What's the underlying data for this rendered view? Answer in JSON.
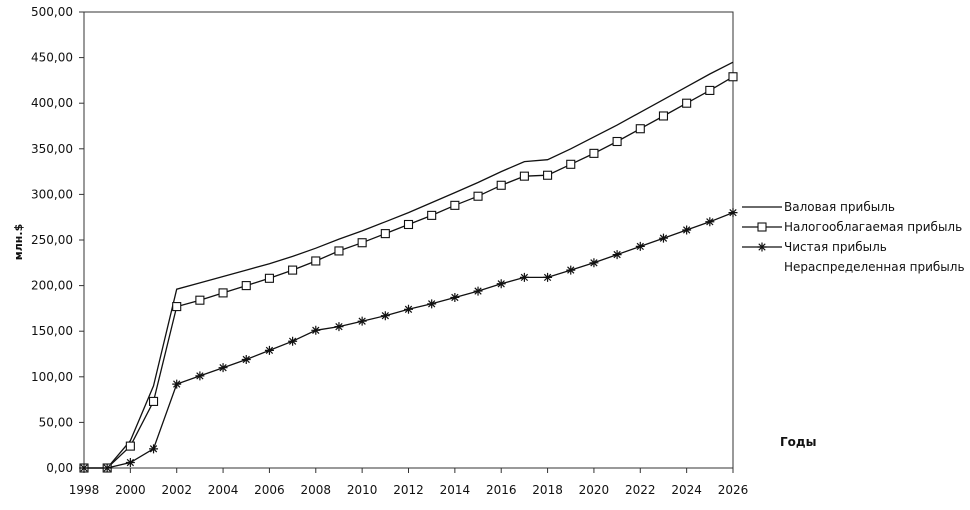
{
  "chart_data": {
    "type": "line",
    "ylabel": "млн.$",
    "xlabel": "Годы",
    "ylim": [
      0,
      500
    ],
    "xlim": [
      1998,
      2026
    ],
    "y_ticks": [
      "0,00",
      "50,00",
      "100,00",
      "150,00",
      "200,00",
      "250,00",
      "300,00",
      "350,00",
      "400,00",
      "450,00",
      "500,00"
    ],
    "x_ticks": [
      "1998",
      "2000",
      "2002",
      "2004",
      "2006",
      "2008",
      "2010",
      "2012",
      "2014",
      "2016",
      "2018",
      "2020",
      "2022",
      "2024",
      "2026"
    ],
    "legend_placement": "right",
    "grid": false,
    "series": [
      {
        "name": "Валовая прибыль",
        "marker": "none",
        "style": "solid",
        "points": [
          [
            1998,
            0
          ],
          [
            1999,
            0
          ],
          [
            2000,
            30
          ],
          [
            2001,
            90
          ],
          [
            2002,
            196
          ],
          [
            2003,
            203
          ],
          [
            2004,
            210
          ],
          [
            2005,
            217
          ],
          [
            2006,
            224
          ],
          [
            2007,
            232
          ],
          [
            2008,
            241
          ],
          [
            2009,
            251
          ],
          [
            2010,
            260
          ],
          [
            2011,
            270
          ],
          [
            2012,
            280
          ],
          [
            2013,
            291
          ],
          [
            2014,
            302
          ],
          [
            2015,
            313
          ],
          [
            2016,
            325
          ],
          [
            2017,
            336
          ],
          [
            2018,
            338
          ],
          [
            2019,
            350
          ],
          [
            2020,
            363
          ],
          [
            2021,
            376
          ],
          [
            2022,
            390
          ],
          [
            2023,
            404
          ],
          [
            2024,
            418
          ],
          [
            2025,
            432
          ],
          [
            2026,
            445
          ]
        ]
      },
      {
        "name": "Налогооблагаемая прибыль",
        "marker": "square",
        "style": "solid",
        "points": [
          [
            1998,
            0
          ],
          [
            1999,
            0
          ],
          [
            2000,
            24
          ],
          [
            2001,
            73
          ],
          [
            2002,
            177
          ],
          [
            2003,
            184
          ],
          [
            2004,
            192
          ],
          [
            2005,
            200
          ],
          [
            2006,
            208
          ],
          [
            2007,
            217
          ],
          [
            2008,
            227
          ],
          [
            2009,
            238
          ],
          [
            2010,
            247
          ],
          [
            2011,
            257
          ],
          [
            2012,
            267
          ],
          [
            2013,
            277
          ],
          [
            2014,
            288
          ],
          [
            2015,
            298
          ],
          [
            2016,
            310
          ],
          [
            2017,
            320
          ],
          [
            2018,
            321
          ],
          [
            2019,
            333
          ],
          [
            2020,
            345
          ],
          [
            2021,
            358
          ],
          [
            2022,
            372
          ],
          [
            2023,
            386
          ],
          [
            2024,
            400
          ],
          [
            2025,
            414
          ],
          [
            2026,
            429
          ]
        ]
      },
      {
        "name": "Чистая прибыль",
        "marker": "star",
        "style": "solid",
        "points": [
          [
            1998,
            0
          ],
          [
            1999,
            0
          ],
          [
            2000,
            6
          ],
          [
            2001,
            21
          ],
          [
            2002,
            92
          ],
          [
            2003,
            101
          ],
          [
            2004,
            110
          ],
          [
            2005,
            119
          ],
          [
            2006,
            129
          ],
          [
            2007,
            139
          ],
          [
            2008,
            151
          ],
          [
            2009,
            155
          ],
          [
            2010,
            161
          ],
          [
            2011,
            167
          ],
          [
            2012,
            174
          ],
          [
            2013,
            180
          ],
          [
            2014,
            187
          ],
          [
            2015,
            194
          ],
          [
            2016,
            202
          ],
          [
            2017,
            209
          ],
          [
            2018,
            209
          ],
          [
            2019,
            217
          ],
          [
            2020,
            225
          ],
          [
            2021,
            234
          ],
          [
            2022,
            243
          ],
          [
            2023,
            252
          ],
          [
            2024,
            261
          ],
          [
            2025,
            270
          ],
          [
            2026,
            280
          ]
        ]
      },
      {
        "name": "Нераспределенная прибыль",
        "marker": "none",
        "style": "none",
        "points": []
      }
    ]
  }
}
